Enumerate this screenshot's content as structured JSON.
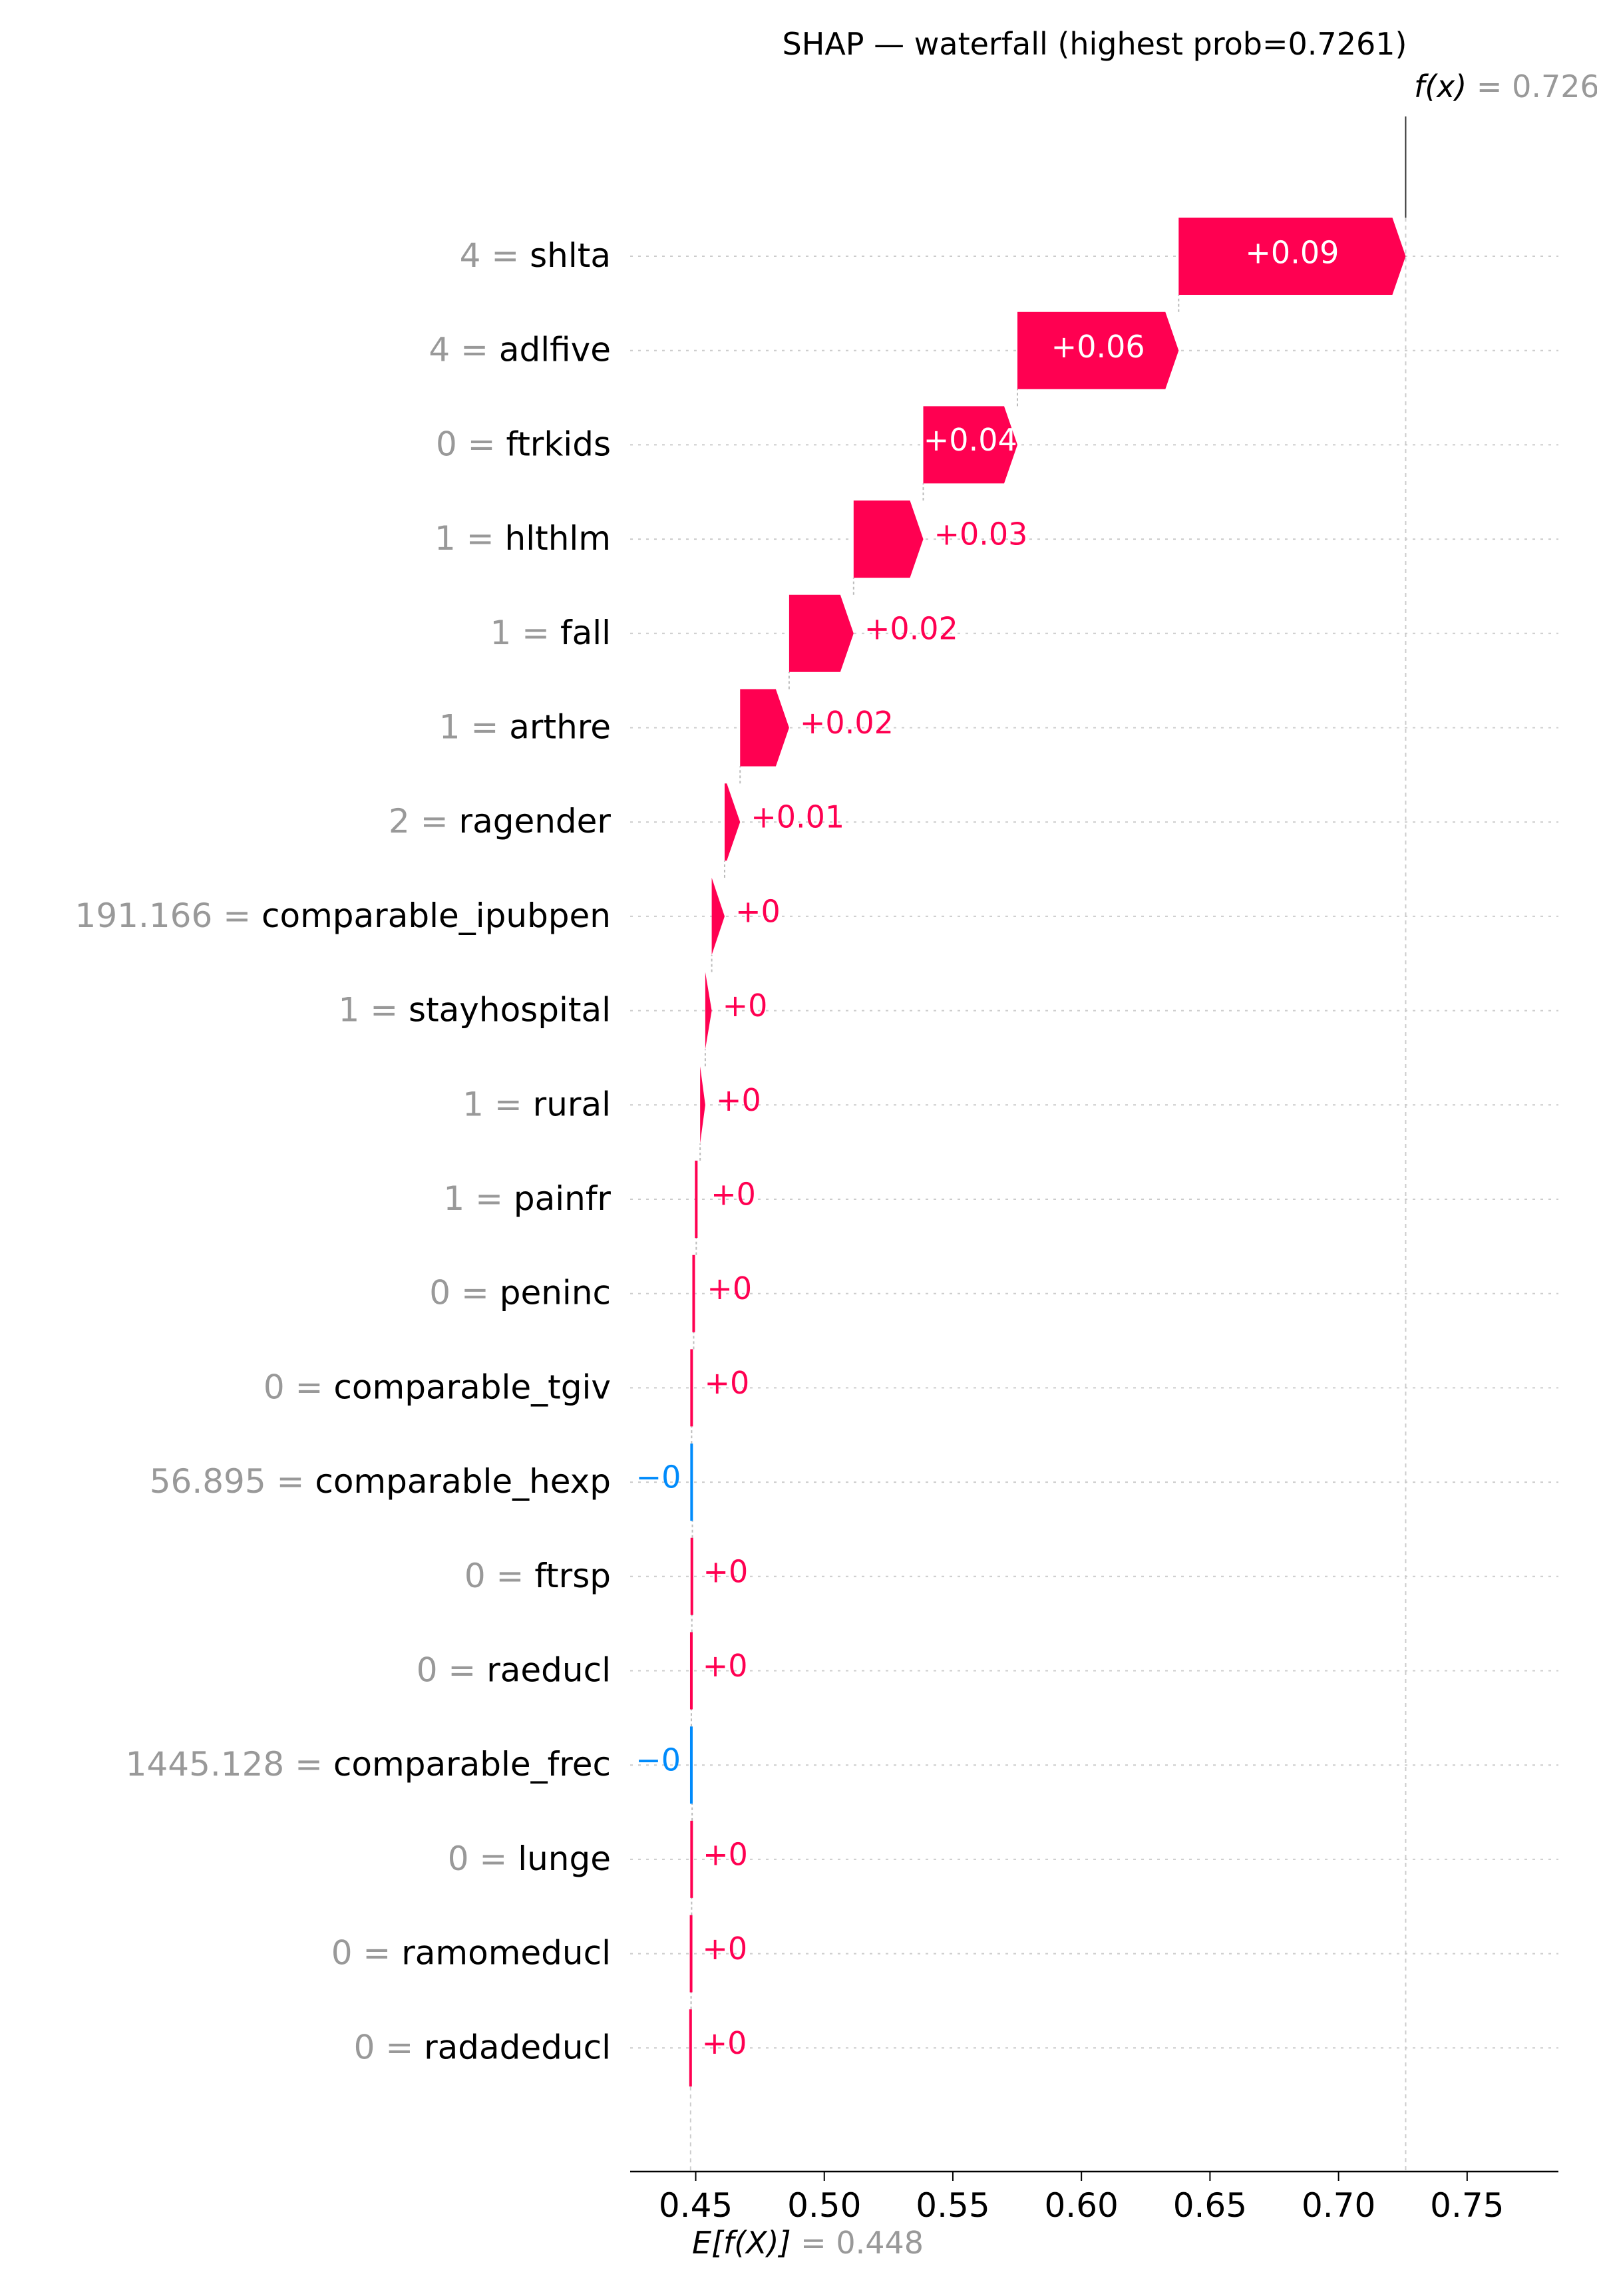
{
  "chart_data": {
    "type": "waterfall",
    "title": "SHAP — waterfall (highest prob=0.7261)",
    "base_value": 0.448,
    "output_value": 0.7261,
    "fx_label": "f(x) = 0.726",
    "ex_label": "E[f(X)] = 0.448",
    "x_ticks": [
      "0.45",
      "0.50",
      "0.55",
      "0.60",
      "0.65",
      "0.70",
      "0.75"
    ],
    "xlim": [
      0.4245,
      0.7855
    ],
    "features": [
      {
        "value": "4",
        "name": "shlta",
        "shap": 0.088,
        "label": "+0.09"
      },
      {
        "value": "4",
        "name": "adlfive",
        "shap": 0.0625,
        "label": "+0.06"
      },
      {
        "value": "0",
        "name": "ftrkids",
        "shap": 0.0365,
        "label": "+0.04"
      },
      {
        "value": "1",
        "name": "hlthlm",
        "shap": 0.027,
        "label": "+0.03"
      },
      {
        "value": "1",
        "name": "fall",
        "shap": 0.025,
        "label": "+0.02"
      },
      {
        "value": "1",
        "name": "arthre",
        "shap": 0.019,
        "label": "+0.02"
      },
      {
        "value": "2",
        "name": "ragender",
        "shap": 0.006,
        "label": "+0.01"
      },
      {
        "value": "191.166",
        "name": "comparable_ipubpen",
        "shap": 0.005,
        "label": "+0"
      },
      {
        "value": "1",
        "name": "stayhospital",
        "shap": 0.0025,
        "label": "+0"
      },
      {
        "value": "1",
        "name": "rural",
        "shap": 0.002,
        "label": "+0"
      },
      {
        "value": "1",
        "name": "painfr",
        "shap": 0.0015,
        "label": "+0"
      },
      {
        "value": "0",
        "name": "peninc",
        "shap": 0.001,
        "label": "+0"
      },
      {
        "value": "0",
        "name": "comparable_tgiv",
        "shap": 0.0008,
        "label": "+0"
      },
      {
        "value": "56.895",
        "name": "comparable_hexp",
        "shap": -0.0003,
        "label": "−0"
      },
      {
        "value": "0",
        "name": "ftrsp",
        "shap": 0.0002,
        "label": "+0"
      },
      {
        "value": "0",
        "name": "raeducl",
        "shap": 0.0002,
        "label": "+0"
      },
      {
        "value": "1445.128",
        "name": "comparable_frec",
        "shap": -0.0003,
        "label": "−0"
      },
      {
        "value": "0",
        "name": "lunge",
        "shap": 0.0002,
        "label": "+0"
      },
      {
        "value": "0",
        "name": "ramomeducl",
        "shap": 0.0002,
        "label": "+0"
      },
      {
        "value": "0",
        "name": "radadeducl",
        "shap": 0.0002,
        "label": "+0"
      }
    ],
    "colors": {
      "positive": "#ff0051",
      "negative": "#008bfb",
      "value_text": "#999999",
      "text": "#000000",
      "inner_label": "#ffffff",
      "grid": "#cccccc"
    }
  }
}
